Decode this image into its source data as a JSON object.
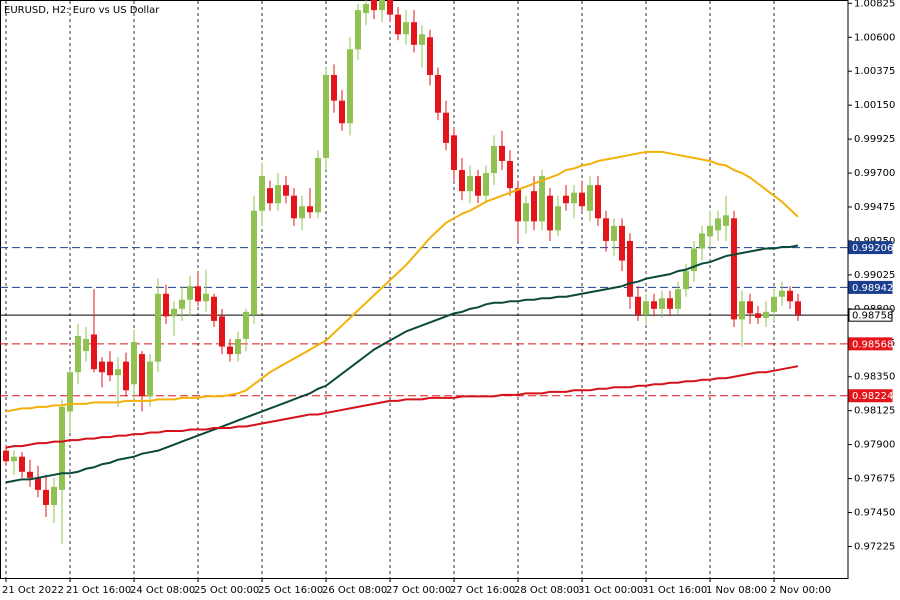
{
  "chart_data": {
    "type": "candlestick",
    "title": "EURUSD, H2:  Euro vs US Dollar",
    "categories": [
      "21 Oct 2022",
      null,
      null,
      null,
      null,
      null,
      null,
      null,
      "21 Oct 16:00",
      null,
      null,
      null,
      null,
      null,
      null,
      null,
      "24 Oct 08:00",
      null,
      null,
      null,
      null,
      null,
      null,
      null,
      "25 Oct 00:00",
      null,
      null,
      null,
      null,
      null,
      null,
      null,
      "25 Oct 16:00",
      null,
      null,
      null,
      null,
      null,
      null,
      null,
      "26 Oct 08:00",
      null,
      null,
      null,
      null,
      null,
      null,
      null,
      "27 Oct 00:00",
      null,
      null,
      null,
      null,
      null,
      null,
      null,
      "27 Oct 16:00",
      null,
      null,
      null,
      null,
      null,
      null,
      null,
      "28 Oct 08:00",
      null,
      null,
      null,
      null,
      null,
      null,
      null,
      "31 Oct 00:00",
      null,
      null,
      null,
      null,
      null,
      null,
      null,
      "31 Oct 16:00",
      null,
      null,
      null,
      null,
      null,
      null,
      null,
      "1 Nov 08:00",
      null,
      null,
      null,
      null,
      null,
      null,
      null,
      "2 Nov 00:00",
      null,
      null,
      null
    ],
    "open": [
      0.9786,
      0.9779,
      0.9782,
      0.9772,
      0.9768,
      0.976,
      0.975,
      0.976,
      0.9812,
      0.9838,
      0.9852,
      0.9863,
      0.9845,
      0.9845,
      0.9836,
      0.9845,
      0.983,
      0.985,
      0.9822,
      0.9845,
      0.989,
      0.9875,
      0.988,
      0.9886,
      0.9895,
      0.9885,
      0.9888,
      0.9875,
      0.9855,
      0.985,
      0.986,
      0.9876,
      0.9945,
      0.996,
      0.995,
      0.9962,
      0.9955,
      0.994,
      0.9948,
      0.9944,
      0.998,
      1.0035,
      1.0018,
      1.0003,
      1.0052,
      1.0076,
      1.0085,
      1.0078,
      1.0085,
      1.0075,
      1.0062,
      1.007,
      1.0055,
      1.006,
      1.0035,
      1.001,
      0.9995,
      0.9972,
      0.9958,
      0.9968,
      0.9955,
      0.997,
      0.9988,
      0.9978,
      0.996,
      0.9938,
      0.9958,
      0.9938,
      0.9955,
      0.9932,
      0.9955,
      0.995,
      0.9957,
      0.9945,
      0.9962,
      0.994,
      0.9925,
      0.9935,
      0.9925,
      0.9888,
      0.9876,
      0.9885,
      0.988,
      0.9887,
      0.988,
      0.9893,
      0.9905,
      0.992,
      0.9928,
      0.9932,
      0.9935,
      0.994,
      0.9873,
      0.9885,
      0.9877,
      0.9874,
      0.9878,
      0.9888,
      0.9892,
      0.9885
    ],
    "high": [
      0.979,
      0.9786,
      0.9785,
      0.978,
      0.9776,
      0.977,
      0.9768,
      0.982,
      0.984,
      0.987,
      0.9868,
      0.9893,
      0.9848,
      0.9852,
      0.9848,
      0.9851,
      0.9866,
      0.9852,
      0.985,
      0.99,
      0.9896,
      0.9885,
      0.9895,
      0.9902,
      0.9905,
      0.9906,
      0.989,
      0.988,
      0.986,
      0.9865,
      0.988,
      0.9955,
      0.9977,
      0.9965,
      0.997,
      0.9968,
      0.996,
      0.9955,
      0.996,
      0.9985,
      1.004,
      1.0042,
      1.0025,
      1.006,
      1.0082,
      1.0088,
      1.0095,
      1.009,
      1.0094,
      1.008,
      1.0078,
      1.0078,
      1.0068,
      1.0065,
      1.004,
      1.0018,
      1.0,
      0.998,
      0.9975,
      0.9972,
      0.9975,
      0.9995,
      0.9998,
      0.9985,
      0.9965,
      0.9955,
      0.9968,
      0.9972,
      0.996,
      0.9955,
      0.9962,
      0.9962,
      0.9965,
      0.9968,
      0.9968,
      0.9945,
      0.994,
      0.994,
      0.993,
      0.9895,
      0.989,
      0.989,
      0.9892,
      0.9892,
      0.9898,
      0.991,
      0.9925,
      0.9935,
      0.9945,
      0.9945,
      0.9955,
      0.9945,
      0.9892,
      0.989,
      0.9882,
      0.9885,
      0.9893,
      0.9898,
      0.9895,
      0.989
    ],
    "low": [
      0.9776,
      0.977,
      0.9768,
      0.9762,
      0.9755,
      0.9742,
      0.9738,
      0.9724,
      0.9798,
      0.983,
      0.9845,
      0.9838,
      0.9828,
      0.9832,
      0.9815,
      0.9822,
      0.982,
      0.9812,
      0.9815,
      0.9838,
      0.987,
      0.9862,
      0.9872,
      0.9875,
      0.9882,
      0.9878,
      0.9868,
      0.985,
      0.9845,
      0.9845,
      0.9852,
      0.987,
      0.9935,
      0.9945,
      0.9945,
      0.995,
      0.9935,
      0.9932,
      0.994,
      0.994,
      0.9972,
      1.001,
      0.9998,
      0.9995,
      1.0045,
      1.0068,
      1.0072,
      1.007,
      1.007,
      1.0058,
      1.0055,
      1.005,
      1.004,
      1.0028,
      1.0005,
      0.9985,
      0.9965,
      0.9952,
      0.995,
      0.995,
      0.995,
      0.9962,
      0.9972,
      0.9955,
      0.9925,
      0.993,
      0.9932,
      0.9932,
      0.9925,
      0.9928,
      0.9945,
      0.994,
      0.9945,
      0.9938,
      0.9935,
      0.9918,
      0.9915,
      0.9905,
      0.988,
      0.9872,
      0.987,
      0.9875,
      0.9874,
      0.9875,
      0.9876,
      0.9888,
      0.9898,
      0.9912,
      0.992,
      0.9925,
      0.9925,
      0.9868,
      0.9855,
      0.987,
      0.987,
      0.9868,
      0.9872,
      0.9882,
      0.988,
      0.9872
    ],
    "close": [
      0.9779,
      0.9782,
      0.9772,
      0.9768,
      0.976,
      0.975,
      0.9762,
      0.9815,
      0.9838,
      0.9862,
      0.986,
      0.984,
      0.9838,
      0.9836,
      0.984,
      0.9826,
      0.9858,
      0.9822,
      0.9845,
      0.989,
      0.9875,
      0.988,
      0.9886,
      0.9895,
      0.9885,
      0.989,
      0.9872,
      0.9855,
      0.985,
      0.986,
      0.9878,
      0.9945,
      0.9968,
      0.995,
      0.9962,
      0.9955,
      0.994,
      0.9948,
      0.9944,
      0.998,
      1.0035,
      1.0018,
      1.0003,
      1.0052,
      1.0078,
      1.0082,
      1.0078,
      1.0085,
      1.0075,
      1.0062,
      1.007,
      1.0055,
      1.0062,
      1.0035,
      1.001,
      0.999,
      0.9972,
      0.9958,
      0.9968,
      0.9955,
      0.997,
      0.9988,
      0.9978,
      0.996,
      0.9938,
      0.995,
      0.9938,
      0.9968,
      0.9932,
      0.9948,
      0.995,
      0.9957,
      0.9948,
      0.9962,
      0.994,
      0.9925,
      0.9935,
      0.9912,
      0.9888,
      0.9876,
      0.9885,
      0.988,
      0.9887,
      0.988,
      0.9893,
      0.9905,
      0.992,
      0.993,
      0.9935,
      0.994,
      0.9942,
      0.9873,
      0.9885,
      0.9877,
      0.9874,
      0.9878,
      0.9888,
      0.9892,
      0.9885,
      0.9876
    ],
    "up_color": "#8fc250",
    "down_color": "#e3151b",
    "moving_averages": [
      {
        "color": "#f2b20a",
        "values": [
          0.9812,
          0.9813,
          0.9814,
          0.9814,
          0.9815,
          0.9815,
          0.9816,
          0.9816,
          0.9817,
          0.9817,
          0.9817,
          0.9818,
          0.9818,
          0.9818,
          0.9818,
          0.9819,
          0.9819,
          0.9819,
          0.9819,
          0.982,
          0.982,
          0.982,
          0.9821,
          0.9821,
          0.9821,
          0.9822,
          0.9822,
          0.9822,
          0.9823,
          0.9824,
          0.9826,
          0.983,
          0.9834,
          0.9838,
          0.9841,
          0.9844,
          0.9847,
          0.985,
          0.9853,
          0.9856,
          0.9859,
          0.9864,
          0.9869,
          0.9874,
          0.9879,
          0.9884,
          0.9889,
          0.9894,
          0.9899,
          0.9904,
          0.9909,
          0.9915,
          0.9921,
          0.9927,
          0.9932,
          0.9937,
          0.994,
          0.9943,
          0.9945,
          0.9948,
          0.9951,
          0.9953,
          0.9955,
          0.9957,
          0.9959,
          0.9961,
          0.9963,
          0.9965,
          0.9967,
          0.9969,
          0.9972,
          0.9973,
          0.9975,
          0.9976,
          0.9978,
          0.9979,
          0.998,
          0.9981,
          0.9982,
          0.9983,
          0.9984,
          0.9984,
          0.9984,
          0.9983,
          0.9982,
          0.9981,
          0.998,
          0.9979,
          0.9978,
          0.9976,
          0.9975,
          0.9972,
          0.997,
          0.9967,
          0.9963,
          0.9959,
          0.9955,
          0.9951,
          0.9946,
          0.9941
        ]
      },
      {
        "color": "#0b4a3a",
        "values": [
          0.9765,
          0.9766,
          0.9767,
          0.9767,
          0.9768,
          0.9769,
          0.977,
          0.9771,
          0.9771,
          0.9772,
          0.9774,
          0.9775,
          0.9777,
          0.9778,
          0.978,
          0.9781,
          0.9782,
          0.9784,
          0.9785,
          0.9786,
          0.9788,
          0.979,
          0.9792,
          0.9794,
          0.9796,
          0.9798,
          0.98,
          0.9802,
          0.9804,
          0.9806,
          0.9808,
          0.981,
          0.9812,
          0.9814,
          0.9816,
          0.9818,
          0.982,
          0.9822,
          0.9824,
          0.9827,
          0.9829,
          0.9833,
          0.9837,
          0.9841,
          0.9845,
          0.9849,
          0.9853,
          0.9856,
          0.9859,
          0.9862,
          0.9865,
          0.9867,
          0.9869,
          0.9871,
          0.9873,
          0.9875,
          0.9877,
          0.9878,
          0.988,
          0.9881,
          0.9883,
          0.9884,
          0.9884,
          0.9885,
          0.9885,
          0.9886,
          0.9886,
          0.9887,
          0.9887,
          0.9888,
          0.9888,
          0.9889,
          0.989,
          0.9891,
          0.9892,
          0.9893,
          0.9894,
          0.9895,
          0.9897,
          0.9898,
          0.99,
          0.9901,
          0.9902,
          0.9903,
          0.9905,
          0.9906,
          0.9908,
          0.991,
          0.9911,
          0.9913,
          0.9915,
          0.9916,
          0.9917,
          0.9918,
          0.9919,
          0.992,
          0.992,
          0.9921,
          0.9921,
          0.9922
        ]
      },
      {
        "color": "#d4121a",
        "values": [
          0.9788,
          0.9789,
          0.9789,
          0.979,
          0.9791,
          0.9791,
          0.9792,
          0.9792,
          0.9793,
          0.9793,
          0.9794,
          0.9794,
          0.9795,
          0.9795,
          0.9796,
          0.9796,
          0.9797,
          0.9797,
          0.9798,
          0.9798,
          0.9799,
          0.9799,
          0.9799,
          0.98,
          0.98,
          0.98,
          0.9801,
          0.9801,
          0.9801,
          0.9802,
          0.9802,
          0.9803,
          0.9804,
          0.9805,
          0.9806,
          0.9807,
          0.9808,
          0.9809,
          0.981,
          0.981,
          0.9811,
          0.9812,
          0.9813,
          0.9814,
          0.9815,
          0.9816,
          0.9817,
          0.9818,
          0.9819,
          0.9819,
          0.982,
          0.982,
          0.982,
          0.9821,
          0.9821,
          0.9821,
          0.9821,
          0.9822,
          0.9822,
          0.9822,
          0.9822,
          0.9822,
          0.9823,
          0.9823,
          0.9823,
          0.9824,
          0.9824,
          0.9824,
          0.9825,
          0.9825,
          0.9825,
          0.9826,
          0.9826,
          0.9826,
          0.9827,
          0.9827,
          0.9828,
          0.9828,
          0.9828,
          0.9829,
          0.9829,
          0.983,
          0.983,
          0.9831,
          0.9831,
          0.9832,
          0.9832,
          0.9833,
          0.9833,
          0.9834,
          0.9834,
          0.9835,
          0.9836,
          0.9837,
          0.9838,
          0.9838,
          0.9839,
          0.984,
          0.9841,
          0.9842
        ]
      }
    ],
    "levels": [
      {
        "value": 0.99206,
        "color": "#1b3f8f",
        "dashed": true
      },
      {
        "value": 0.98942,
        "color": "#1b3f8f",
        "dashed": true
      },
      {
        "value": 0.98758,
        "color": "#000000",
        "dashed": false
      },
      {
        "value": 0.98568,
        "color": "#e3151b",
        "dashed": true
      },
      {
        "value": 0.98224,
        "color": "#e3151b",
        "dashed": true
      }
    ],
    "ylim": [
      0.97016,
      1.00847
    ],
    "yticks": [
      1.00825,
      {
        "value": 1.006,
        "label": "1.00600"
      },
      1.00375,
      {
        "value": 1.0015,
        "label": "1.00150"
      },
      0.99925,
      {
        "value": 0.997,
        "label": "0.99700"
      },
      0.99475,
      {
        "value": 0.9925,
        "label": "0.99250"
      },
      0.99025,
      {
        "value": 0.988,
        "label": "0.98800"
      },
      0.98575,
      {
        "value": 0.9835,
        "label": "0.98350"
      },
      0.98125,
      {
        "value": 0.979,
        "label": "0.97900"
      },
      0.97675,
      {
        "value": 0.9745,
        "label": "0.97450"
      },
      0.97225
    ],
    "grid": true
  }
}
